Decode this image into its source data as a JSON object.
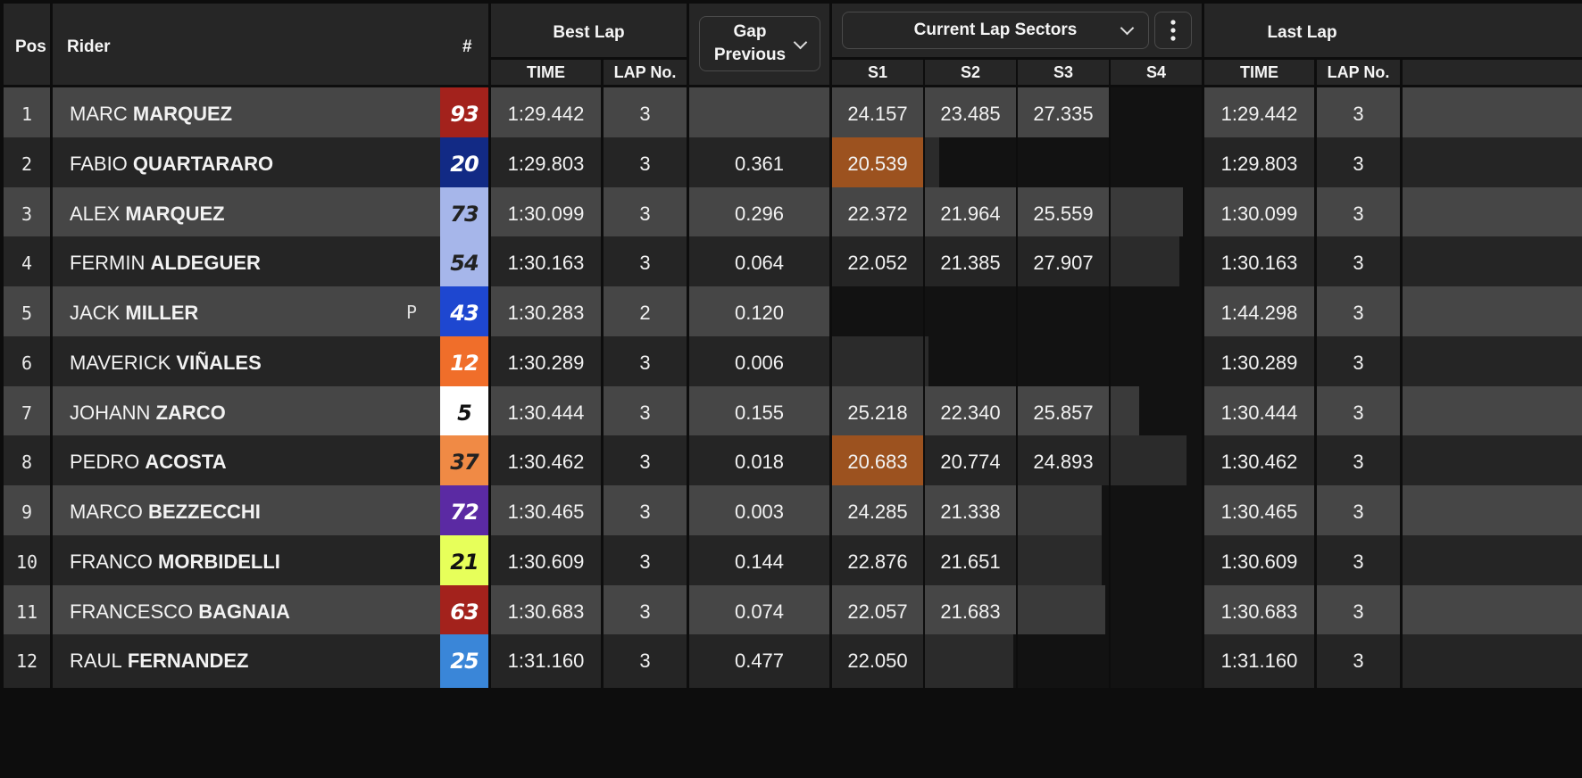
{
  "headers": {
    "pos": "Pos",
    "rider": "Rider",
    "number": "#",
    "best_lap": "Best Lap",
    "best_time": "TIME",
    "best_lap_no": "LAP No.",
    "gap_line1": "Gap",
    "gap_line2": "Previous",
    "sectors": "Current Lap Sectors",
    "s1": "S1",
    "s2": "S2",
    "s3": "S3",
    "s4": "S4",
    "last_lap": "Last Lap",
    "last_time": "TIME",
    "last_lap_no": "LAP No."
  },
  "colors": {
    "purple_sector": "#9c521f",
    "row_light": "#464646",
    "row_dark": "#252525"
  },
  "rows": [
    {
      "pos": "1",
      "first": "MARC",
      "last": "MARQUEZ",
      "flag": "",
      "num": "93",
      "num_bg": "#a3221c",
      "num_fg": "#ffffff",
      "best_time": "1:29.442",
      "best_lap": "3",
      "gap": "",
      "s1": "24.157",
      "s2": "23.485",
      "s3": "27.335",
      "s4": "",
      "progress": 0.64,
      "last_time": "1:29.442",
      "last_lap": "3",
      "s1_purple": false
    },
    {
      "pos": "2",
      "first": "FABIO",
      "last": "QUARTARARO",
      "flag": "",
      "num": "20",
      "num_bg": "#122a85",
      "num_fg": "#ffffff",
      "best_time": "1:29.803",
      "best_lap": "3",
      "gap": "0.361",
      "s1": "20.539",
      "s2": "",
      "s3": "",
      "s4": "",
      "progress": 0.29,
      "last_time": "1:29.803",
      "last_lap": "3",
      "s1_purple": true
    },
    {
      "pos": "3",
      "first": "ALEX",
      "last": "MARQUEZ",
      "flag": "",
      "num": "73",
      "num_bg": "#a6b6ea",
      "num_fg": "#222222",
      "best_time": "1:30.099",
      "best_lap": "3",
      "gap": "0.296",
      "s1": "22.372",
      "s2": "21.964",
      "s3": "25.559",
      "s4": "",
      "progress": 0.95,
      "last_time": "1:30.099",
      "last_lap": "3",
      "s1_purple": false
    },
    {
      "pos": "4",
      "first": "FERMIN",
      "last": "ALDEGUER",
      "flag": "",
      "num": "54",
      "num_bg": "#a6b6ea",
      "num_fg": "#222222",
      "best_time": "1:30.163",
      "best_lap": "3",
      "gap": "0.064",
      "s1": "22.052",
      "s2": "21.385",
      "s3": "27.907",
      "s4": "",
      "progress": 0.94,
      "last_time": "1:30.163",
      "last_lap": "3",
      "s1_purple": false
    },
    {
      "pos": "5",
      "first": "JACK",
      "last": "MILLER",
      "flag": "P",
      "num": "43",
      "num_bg": "#1e47d0",
      "num_fg": "#ffffff",
      "best_time": "1:30.283",
      "best_lap": "2",
      "gap": "0.120",
      "s1": "",
      "s2": "",
      "s3": "",
      "s4": "",
      "progress": 0.0,
      "last_time": "1:44.298",
      "last_lap": "3",
      "s1_purple": false
    },
    {
      "pos": "6",
      "first": "MAVERICK",
      "last": "VIÑALES",
      "flag": "",
      "num": "12",
      "num_bg": "#f06e2a",
      "num_fg": "#ffffff",
      "best_time": "1:30.289",
      "best_lap": "3",
      "gap": "0.006",
      "s1": "",
      "s2": "",
      "s3": "",
      "s4": "",
      "progress": 0.26,
      "last_time": "1:30.289",
      "last_lap": "3",
      "s1_purple": false
    },
    {
      "pos": "7",
      "first": "JOHANN",
      "last": "ZARCO",
      "flag": "",
      "num": "5",
      "num_bg": "#ffffff",
      "num_fg": "#111111",
      "best_time": "1:30.444",
      "best_lap": "3",
      "gap": "0.155",
      "s1": "25.218",
      "s2": "22.340",
      "s3": "25.857",
      "s4": "",
      "progress": 0.83,
      "last_time": "1:30.444",
      "last_lap": "3",
      "s1_purple": false
    },
    {
      "pos": "8",
      "first": "PEDRO",
      "last": "ACOSTA",
      "flag": "",
      "num": "37",
      "num_bg": "#f08a45",
      "num_fg": "#222222",
      "best_time": "1:30.462",
      "best_lap": "3",
      "gap": "0.018",
      "s1": "20.683",
      "s2": "20.774",
      "s3": "24.893",
      "s4": "",
      "progress": 0.96,
      "last_time": "1:30.462",
      "last_lap": "3",
      "s1_purple": true
    },
    {
      "pos": "9",
      "first": "MARCO",
      "last": "BEZZECCHI",
      "flag": "",
      "num": "72",
      "num_bg": "#5b2aa3",
      "num_fg": "#ffffff",
      "best_time": "1:30.465",
      "best_lap": "3",
      "gap": "0.003",
      "s1": "24.285",
      "s2": "21.338",
      "s3": "",
      "s4": "",
      "progress": 0.73,
      "last_time": "1:30.465",
      "last_lap": "3",
      "s1_purple": false
    },
    {
      "pos": "10",
      "first": "FRANCO",
      "last": "MORBIDELLI",
      "flag": "",
      "num": "21",
      "num_bg": "#e7ff5a",
      "num_fg": "#111111",
      "best_time": "1:30.609",
      "best_lap": "3",
      "gap": "0.144",
      "s1": "22.876",
      "s2": "21.651",
      "s3": "",
      "s4": "",
      "progress": 0.73,
      "last_time": "1:30.609",
      "last_lap": "3",
      "s1_purple": false
    },
    {
      "pos": "11",
      "first": "FRANCESCO",
      "last": "BAGNAIA",
      "flag": "",
      "num": "63",
      "num_bg": "#a3221c",
      "num_fg": "#ffffff",
      "best_time": "1:30.683",
      "best_lap": "3",
      "gap": "0.074",
      "s1": "22.057",
      "s2": "21.683",
      "s3": "",
      "s4": "",
      "progress": 0.74,
      "last_time": "1:30.683",
      "last_lap": "3",
      "s1_purple": false
    },
    {
      "pos": "12",
      "first": "RAUL",
      "last": "FERNANDEZ",
      "flag": "",
      "num": "25",
      "num_bg": "#3a86d8",
      "num_fg": "#ffffff",
      "best_time": "1:31.160",
      "best_lap": "3",
      "gap": "0.477",
      "s1": "22.050",
      "s2": "",
      "s3": "",
      "s4": "",
      "progress": 0.49,
      "last_time": "1:31.160",
      "last_lap": "3",
      "s1_purple": false
    }
  ]
}
